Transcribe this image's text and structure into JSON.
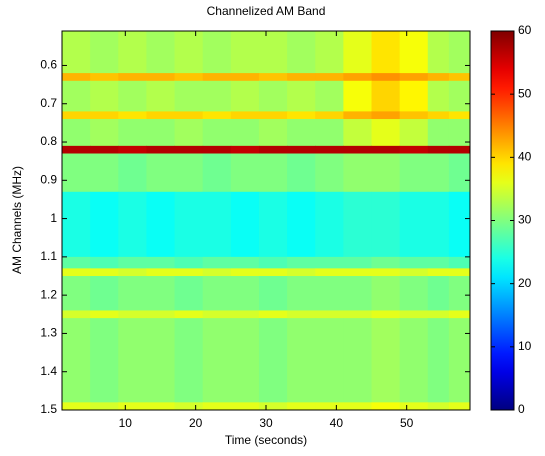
{
  "chart_data": {
    "type": "heatmap",
    "title": "Channelized AM Band",
    "xlabel": "Time (seconds)",
    "ylabel": "AM Channels (MHz)",
    "x": [
      3,
      7,
      11,
      15,
      19,
      23,
      27,
      31,
      35,
      39,
      43,
      47,
      51,
      55,
      57
    ],
    "ybins": [
      0.51,
      0.62,
      0.64,
      0.72,
      0.74,
      0.81,
      0.83,
      0.93,
      1.1,
      1.13,
      1.15,
      1.24,
      1.26,
      1.48,
      1.5
    ],
    "values": [
      [
        33,
        32,
        33,
        32,
        33,
        32,
        33,
        33,
        32,
        33,
        36,
        39,
        37,
        33,
        32
      ],
      [
        42,
        41,
        42,
        42,
        41,
        42,
        42,
        41,
        42,
        42,
        43,
        44,
        43,
        42,
        41
      ],
      [
        32,
        33,
        32,
        33,
        32,
        32,
        33,
        32,
        33,
        32,
        37,
        40,
        38,
        33,
        32
      ],
      [
        40,
        40,
        39,
        40,
        40,
        39,
        40,
        40,
        39,
        40,
        42,
        43,
        41,
        40,
        39
      ],
      [
        31,
        32,
        31,
        31,
        32,
        31,
        31,
        32,
        31,
        31,
        34,
        36,
        34,
        31,
        31
      ],
      [
        57,
        57,
        56,
        57,
        57,
        57,
        56,
        57,
        57,
        57,
        57,
        57,
        56,
        57,
        57
      ],
      [
        30,
        30,
        29,
        30,
        30,
        29,
        30,
        30,
        29,
        30,
        31,
        31,
        30,
        30,
        29
      ],
      [
        24,
        23,
        24,
        23,
        24,
        24,
        23,
        24,
        23,
        24,
        25,
        25,
        24,
        24,
        23
      ],
      [
        28,
        27,
        28,
        28,
        27,
        28,
        28,
        27,
        28,
        28,
        28,
        29,
        28,
        28,
        27
      ],
      [
        36,
        36,
        35,
        36,
        36,
        35,
        36,
        36,
        35,
        36,
        36,
        36,
        35,
        36,
        36
      ],
      [
        30,
        29,
        30,
        30,
        29,
        30,
        30,
        29,
        30,
        30,
        30,
        31,
        30,
        29,
        30
      ],
      [
        35,
        36,
        35,
        35,
        36,
        35,
        35,
        36,
        35,
        35,
        35,
        36,
        35,
        35,
        36
      ],
      [
        31,
        30,
        31,
        31,
        30,
        31,
        31,
        30,
        31,
        31,
        31,
        32,
        31,
        30,
        31
      ],
      [
        36,
        35,
        36,
        36,
        35,
        36,
        36,
        35,
        36,
        36,
        36,
        37,
        36,
        35,
        36
      ]
    ],
    "xlim": [
      1,
      59
    ],
    "xticks": [
      10,
      20,
      30,
      40,
      50
    ],
    "ylim": [
      0.51,
      1.5
    ],
    "yticks": [
      0.6,
      0.7,
      0.8,
      0.9,
      1,
      1.1,
      1.2,
      1.3,
      1.4,
      1.5
    ],
    "y_reversed": true,
    "clim": [
      0,
      60
    ],
    "cticks": [
      0,
      10,
      20,
      30,
      40,
      50,
      60
    ],
    "colormap": "jet"
  }
}
